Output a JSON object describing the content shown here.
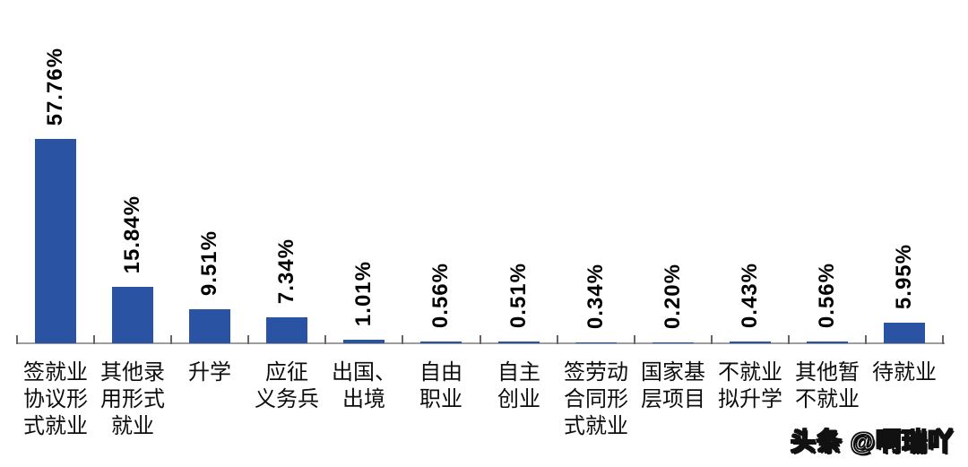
{
  "chart_data": {
    "type": "bar",
    "title": "",
    "xlabel": "",
    "ylabel": "",
    "grid": false,
    "legend": false,
    "ylim": [
      0,
      60
    ],
    "bar_color": "#2A53A3",
    "axis_color": "#9e9e9e",
    "tick_color": "#666666",
    "value_label_color": "#000000",
    "value_label_rotation_deg": 90,
    "categories": [
      "签就业\n协议形\n式就业",
      "其他录\n用形式\n就业",
      "升学",
      "应征\n义务兵",
      "出国、\n出境",
      "自由\n职业",
      "自主\n创业",
      "签劳动\n合同形\n式就业",
      "国家基\n层项目",
      "不就业\n拟升学",
      "其他暂\n不就业",
      "待就业"
    ],
    "values": [
      57.76,
      15.84,
      9.51,
      7.34,
      1.01,
      0.56,
      0.51,
      0.34,
      0.2,
      0.43,
      0.56,
      5.95
    ],
    "value_labels": [
      "57.76%",
      "15.84%",
      "9.51%",
      "7.34%",
      "1.01%",
      "0.56%",
      "0.51%",
      "0.34%",
      "0.20%",
      "0.43%",
      "0.56%",
      "5.95%"
    ]
  },
  "watermark": {
    "text": "头条 @啊瑞吖"
  }
}
